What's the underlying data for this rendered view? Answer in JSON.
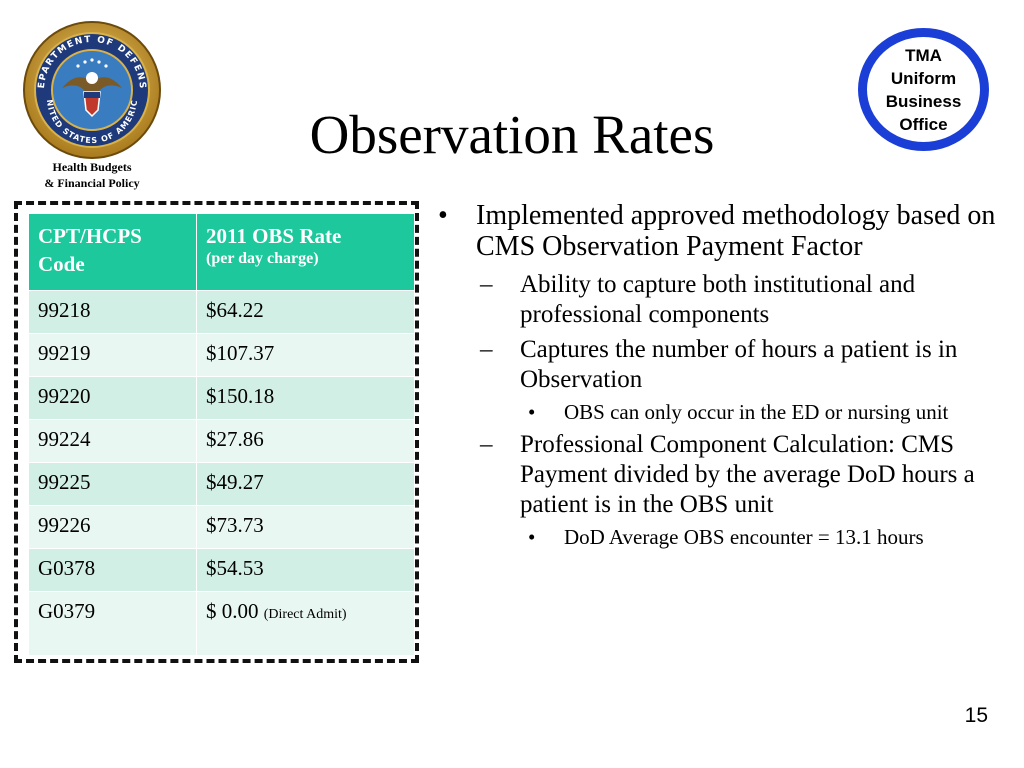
{
  "title": "Observation Rates",
  "seal": {
    "text_top": "DEPARTMENT OF DEFENSE",
    "text_bottom": "UNITED STATES OF AMERICA",
    "caption_line1": "Health Budgets",
    "caption_line2": "& Financial Policy"
  },
  "badge": {
    "line1": "TMA",
    "line2": "Uniform",
    "line3": "Business",
    "line4": "Office"
  },
  "table": {
    "header_col1": "CPT/HCPS Code",
    "header_col2": "2011 OBS Rate",
    "header_col2_sub": "(per day charge)",
    "rows": [
      {
        "code": "99218",
        "rate": "$64.22"
      },
      {
        "code": "99219",
        "rate": "$107.37"
      },
      {
        "code": "99220",
        "rate": "$150.18"
      },
      {
        "code": "99224",
        "rate": "$27.86"
      },
      {
        "code": "99225",
        "rate": "$49.27"
      },
      {
        "code": "99226",
        "rate": "$73.73"
      },
      {
        "code": "G0378",
        "rate": "$54.53"
      },
      {
        "code": "G0379",
        "rate": "$ 0.00",
        "note": "(Direct Admit)"
      }
    ]
  },
  "bullets": {
    "b1": "Implemented approved methodology based on CMS Observation Payment Factor",
    "b1_1": "Ability to capture both institutional and professional components",
    "b1_2": "Captures the number of hours a patient is in Observation",
    "b1_2_1": "OBS can only occur in the ED or nursing unit",
    "b1_3": "Professional Component Calculation: CMS Payment divided by the average DoD hours a patient is in the OBS unit",
    "b1_3_1": "DoD Average OBS encounter = 13.1 hours"
  },
  "page_number": "15",
  "colors": {
    "table_header": "#1cc89c",
    "row_shade": "#d2efe6",
    "row_light": "#e9f7f2",
    "badge_ring": "#1b3fd6"
  }
}
